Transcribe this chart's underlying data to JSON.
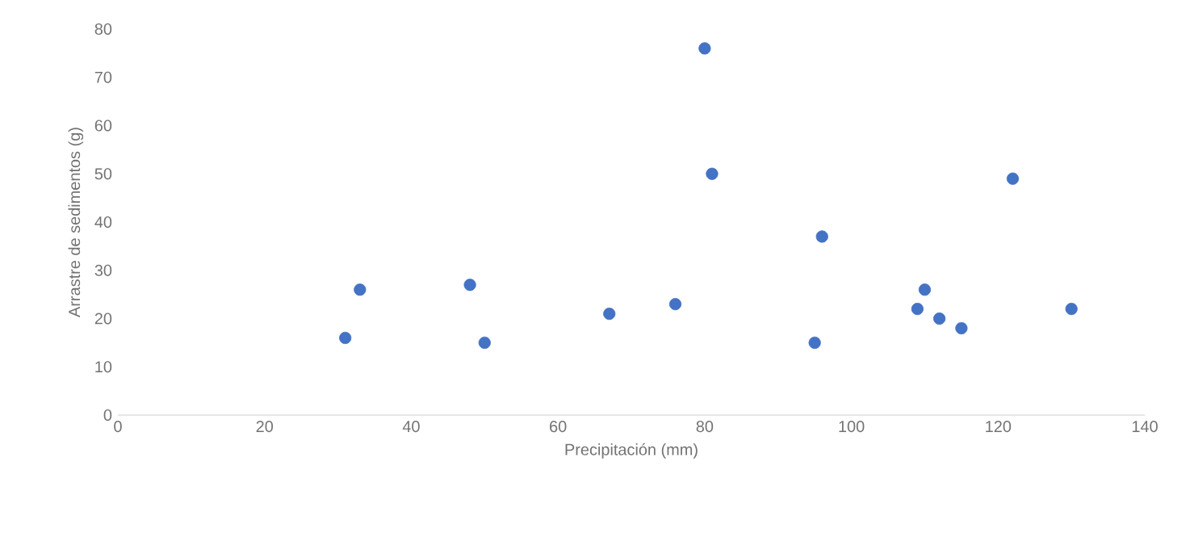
{
  "chart_data": {
    "type": "scatter",
    "xlabel": "Precipitación (mm)",
    "ylabel": "Arrastre de sedimentos (g)",
    "x": [
      31,
      33,
      48,
      50,
      67,
      76,
      80,
      81,
      95,
      96,
      109,
      110,
      112,
      115,
      122,
      130
    ],
    "values": [
      16,
      26,
      27,
      15,
      21,
      23,
      76,
      50,
      15,
      37,
      22,
      26,
      20,
      18,
      49,
      22
    ],
    "color": "#4472c4",
    "xlim": [
      0,
      140
    ],
    "xticks": [
      0,
      20,
      40,
      60,
      80,
      100,
      120,
      140
    ],
    "ylim": [
      0,
      80
    ],
    "yticks": [
      0,
      10,
      20,
      30,
      40,
      50,
      60,
      70,
      80
    ]
  }
}
